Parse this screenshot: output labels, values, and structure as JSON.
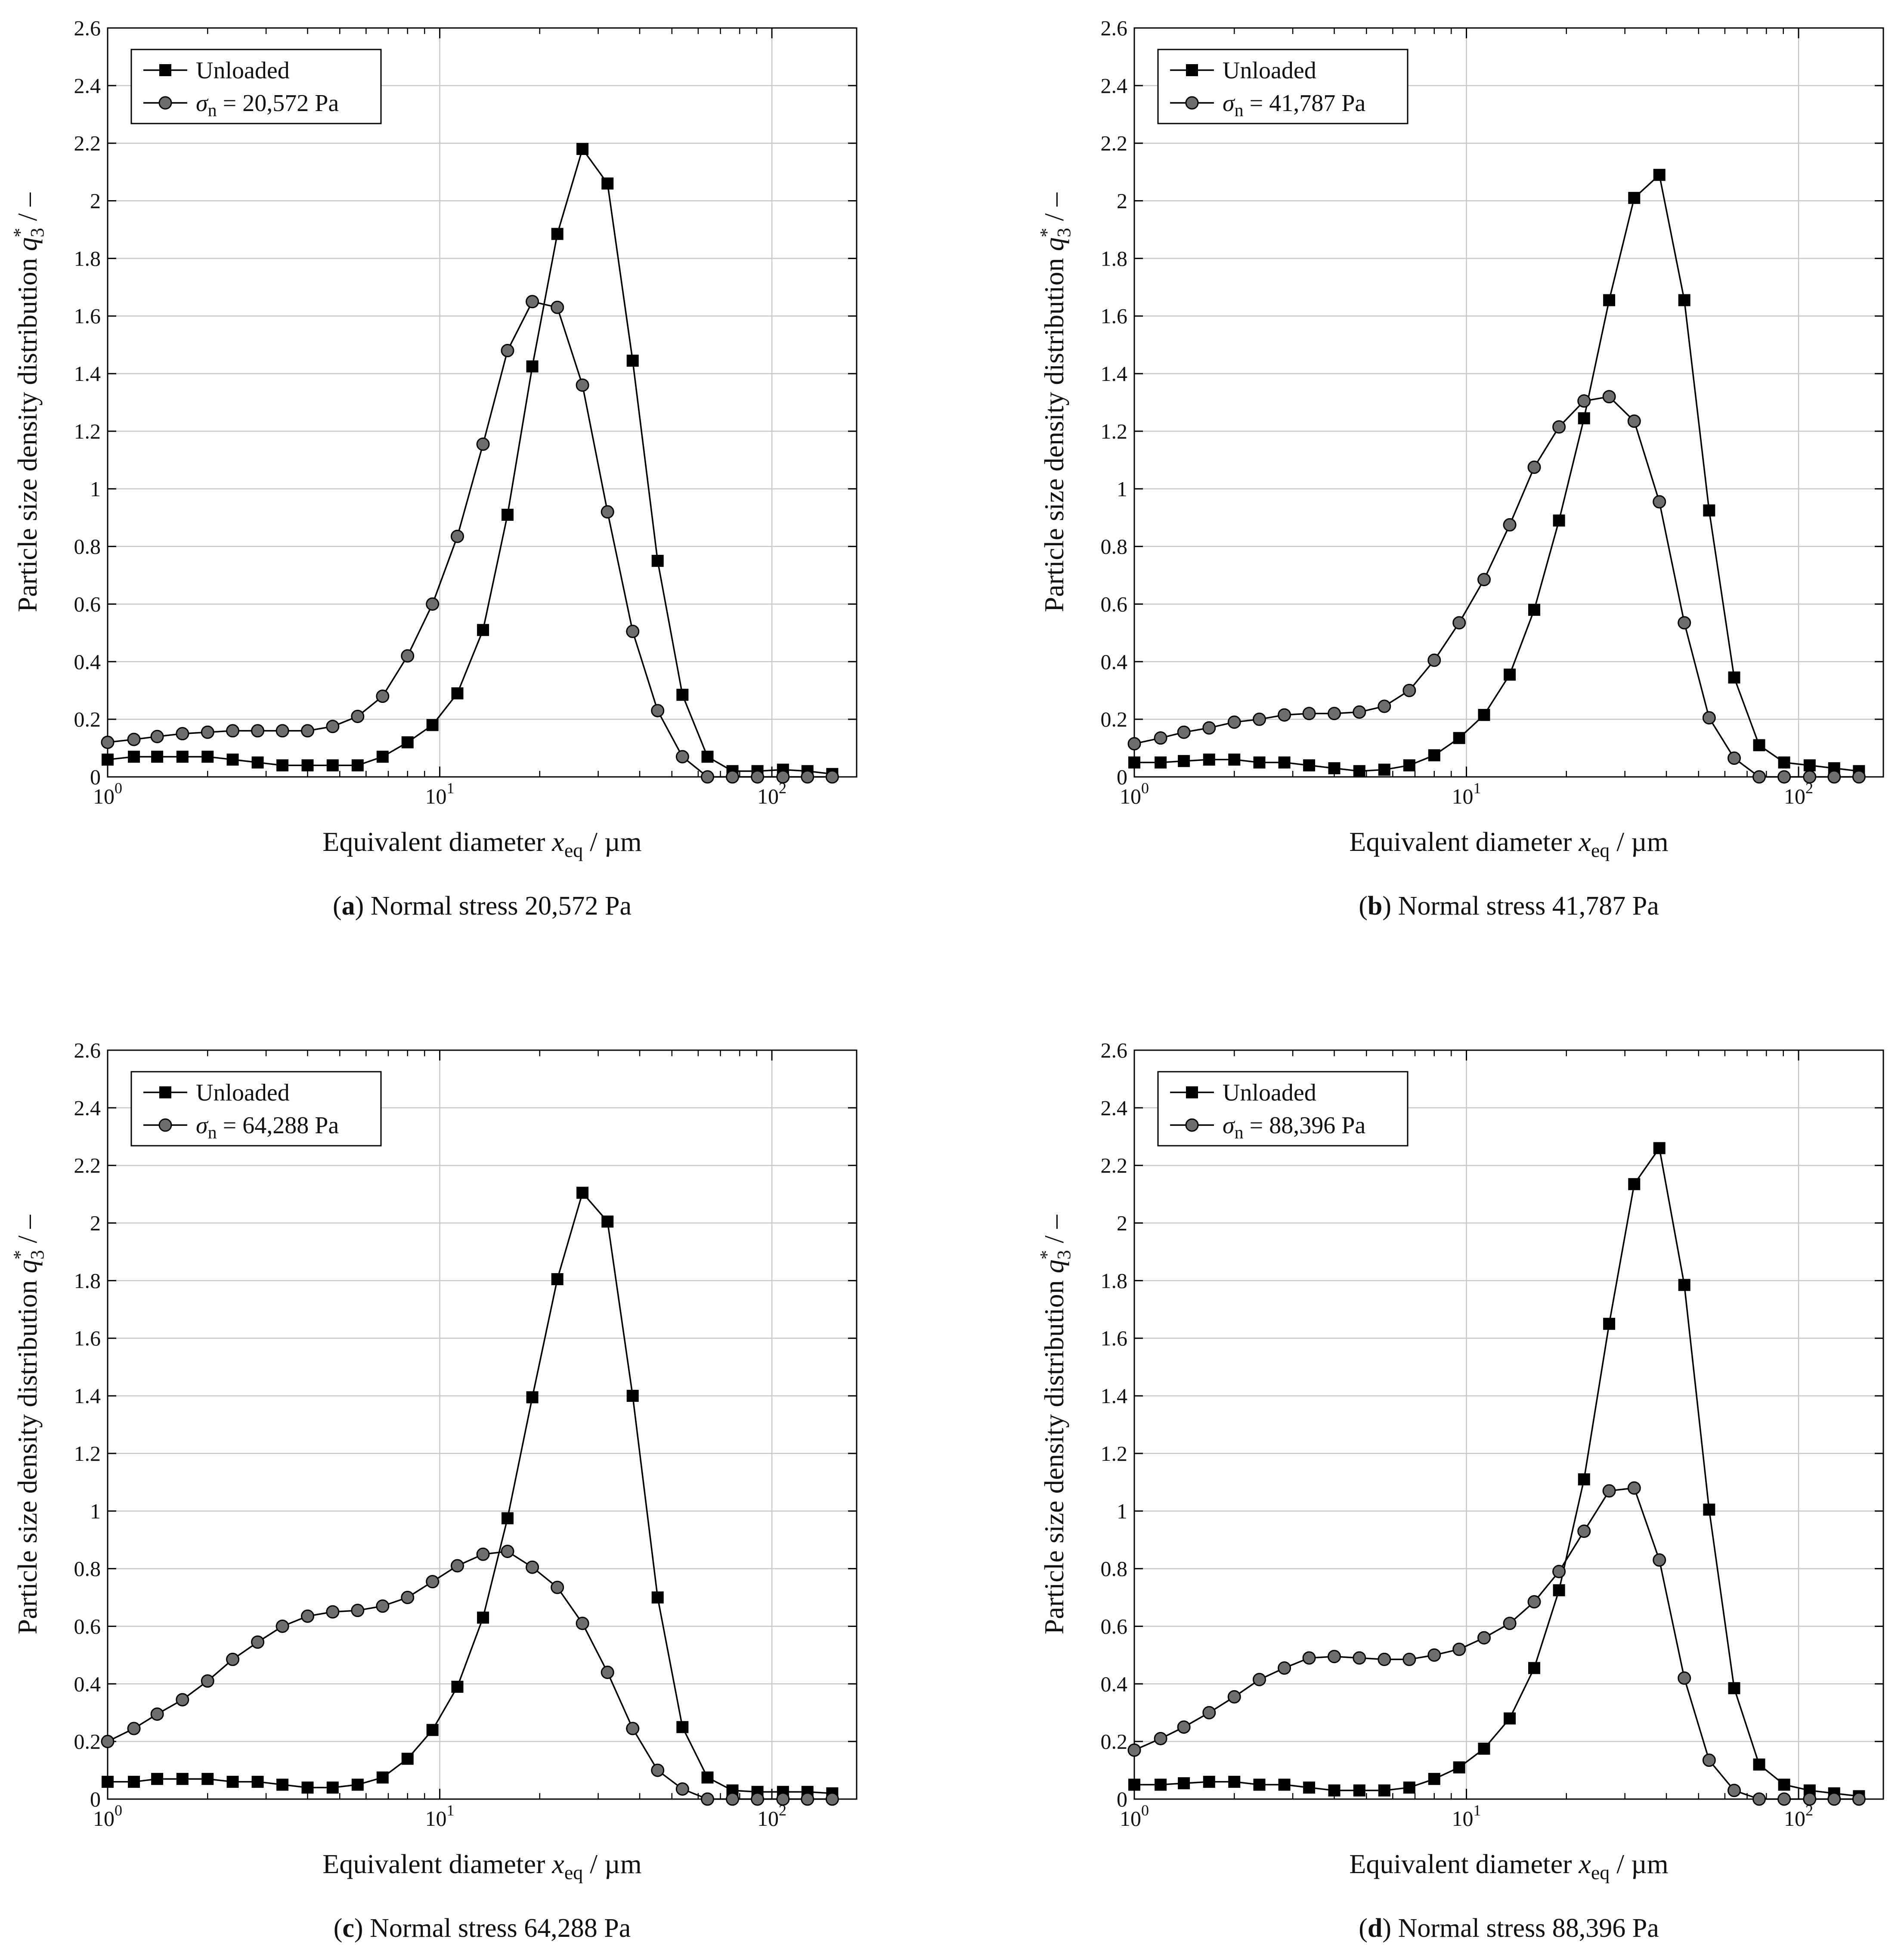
{
  "chart_data": [
    {
      "type": "line",
      "x_scale": "log",
      "xlim": [
        1,
        180
      ],
      "ylim": [
        0,
        2.6
      ],
      "grid": true,
      "legend_position": "top-left",
      "x_ticks": [
        {
          "value": 1,
          "exp": "0"
        },
        {
          "value": 10,
          "exp": "1"
        },
        {
          "value": 100,
          "exp": "2"
        }
      ],
      "y_ticks": [
        0,
        0.2,
        0.4,
        0.6,
        0.8,
        1,
        1.2,
        1.4,
        1.6,
        1.8,
        2,
        2.2,
        2.4,
        2.6
      ],
      "xlabel": "Equivalent diameter",
      "xlabel_var": "x",
      "xlabel_sub": "eq",
      "xlabel_unit": " / µm",
      "ylabel": "Particle size density distribution",
      "ylabel_var": "q",
      "ylabel_sup": "*",
      "ylabel_sub": "3",
      "ylabel_unit": " / –",
      "caption_letter": "(a)",
      "caption_text": "Normal stress 20,572 Pa",
      "series": [
        {
          "name": "Unloaded",
          "marker": "square",
          "color": "#000000",
          "x": [
            1.0,
            1.2,
            1.41,
            1.68,
            2.0,
            2.38,
            2.83,
            3.36,
            4.0,
            4.76,
            5.66,
            6.73,
            8.0,
            9.51,
            11.3,
            13.5,
            16.0,
            19.0,
            22.6,
            26.9,
            32.0,
            38.1,
            45.3,
            53.8,
            64.0,
            76.1,
            90.5,
            108,
            128,
            152
          ],
          "y": [
            0.06,
            0.07,
            0.07,
            0.07,
            0.07,
            0.06,
            0.05,
            0.04,
            0.04,
            0.04,
            0.04,
            0.07,
            0.12,
            0.18,
            0.29,
            0.51,
            0.91,
            1.425,
            1.885,
            2.18,
            2.06,
            1.445,
            0.75,
            0.285,
            0.07,
            0.02,
            0.02,
            0.025,
            0.02,
            0.01
          ]
        },
        {
          "name_prefix": "σ",
          "name_sub": "n",
          "name_value": " = 20,572 Pa",
          "marker": "circle",
          "color": "#6e6e6e",
          "x": [
            1.0,
            1.2,
            1.41,
            1.68,
            2.0,
            2.38,
            2.83,
            3.36,
            4.0,
            4.76,
            5.66,
            6.73,
            8.0,
            9.51,
            11.3,
            13.5,
            16.0,
            19.0,
            22.6,
            26.9,
            32.0,
            38.1,
            45.3,
            53.8,
            64.0,
            76.1,
            90.5,
            108,
            128,
            152
          ],
          "y": [
            0.12,
            0.13,
            0.14,
            0.15,
            0.155,
            0.16,
            0.16,
            0.16,
            0.16,
            0.175,
            0.21,
            0.28,
            0.42,
            0.6,
            0.835,
            1.155,
            1.48,
            1.65,
            1.63,
            1.36,
            0.92,
            0.505,
            0.23,
            0.07,
            0.0,
            0.0,
            0.0,
            0.0,
            0.0,
            0.0
          ]
        }
      ]
    },
    {
      "type": "line",
      "x_scale": "log",
      "xlim": [
        1,
        180
      ],
      "ylim": [
        0,
        2.6
      ],
      "grid": true,
      "legend_position": "top-left",
      "x_ticks": [
        {
          "value": 1,
          "exp": "0"
        },
        {
          "value": 10,
          "exp": "1"
        },
        {
          "value": 100,
          "exp": "2"
        }
      ],
      "y_ticks": [
        0,
        0.2,
        0.4,
        0.6,
        0.8,
        1,
        1.2,
        1.4,
        1.6,
        1.8,
        2,
        2.2,
        2.4,
        2.6
      ],
      "xlabel": "Equivalent diameter",
      "xlabel_var": "x",
      "xlabel_sub": "eq",
      "xlabel_unit": " / µm",
      "ylabel": "Particle size density distribution",
      "ylabel_var": "q",
      "ylabel_sup": "*",
      "ylabel_sub": "3",
      "ylabel_unit": " / –",
      "caption_letter": "(b)",
      "caption_text": "Normal stress 41,787 Pa",
      "series": [
        {
          "name": "Unloaded",
          "marker": "square",
          "color": "#000000",
          "x": [
            1.0,
            1.2,
            1.41,
            1.68,
            2.0,
            2.38,
            2.83,
            3.36,
            4.0,
            4.76,
            5.66,
            6.73,
            8.0,
            9.51,
            11.3,
            13.5,
            16.0,
            19.0,
            22.6,
            26.9,
            32.0,
            38.1,
            45.3,
            53.8,
            64.0,
            76.1,
            90.5,
            108,
            128,
            152
          ],
          "y": [
            0.05,
            0.05,
            0.055,
            0.06,
            0.06,
            0.05,
            0.05,
            0.04,
            0.03,
            0.02,
            0.025,
            0.04,
            0.075,
            0.135,
            0.215,
            0.355,
            0.58,
            0.89,
            1.245,
            1.655,
            2.01,
            2.09,
            1.655,
            0.925,
            0.345,
            0.11,
            0.05,
            0.04,
            0.03,
            0.02
          ]
        },
        {
          "name_prefix": "σ",
          "name_sub": "n",
          "name_value": " = 41,787 Pa",
          "marker": "circle",
          "color": "#6e6e6e",
          "x": [
            1.0,
            1.2,
            1.41,
            1.68,
            2.0,
            2.38,
            2.83,
            3.36,
            4.0,
            4.76,
            5.66,
            6.73,
            8.0,
            9.51,
            11.3,
            13.5,
            16.0,
            19.0,
            22.6,
            26.9,
            32.0,
            38.1,
            45.3,
            53.8,
            64.0,
            76.1,
            90.5,
            108,
            128,
            152
          ],
          "y": [
            0.115,
            0.135,
            0.155,
            0.17,
            0.19,
            0.2,
            0.215,
            0.22,
            0.22,
            0.225,
            0.245,
            0.3,
            0.405,
            0.535,
            0.685,
            0.875,
            1.075,
            1.215,
            1.305,
            1.32,
            1.235,
            0.955,
            0.535,
            0.205,
            0.065,
            0.0,
            0.0,
            0.0,
            0.0,
            0.0
          ]
        }
      ]
    },
    {
      "type": "line",
      "x_scale": "log",
      "xlim": [
        1,
        180
      ],
      "ylim": [
        0,
        2.6
      ],
      "grid": true,
      "legend_position": "top-left",
      "x_ticks": [
        {
          "value": 1,
          "exp": "0"
        },
        {
          "value": 10,
          "exp": "1"
        },
        {
          "value": 100,
          "exp": "2"
        }
      ],
      "y_ticks": [
        0,
        0.2,
        0.4,
        0.6,
        0.8,
        1,
        1.2,
        1.4,
        1.6,
        1.8,
        2,
        2.2,
        2.4,
        2.6
      ],
      "xlabel": "Equivalent diameter",
      "xlabel_var": "x",
      "xlabel_sub": "eq",
      "xlabel_unit": " / µm",
      "ylabel": "Particle size density distribution",
      "ylabel_var": "q",
      "ylabel_sup": "*",
      "ylabel_sub": "3",
      "ylabel_unit": " / –",
      "caption_letter": "(c)",
      "caption_text": "Normal stress 64,288 Pa",
      "series": [
        {
          "name": "Unloaded",
          "marker": "square",
          "color": "#000000",
          "x": [
            1.0,
            1.2,
            1.41,
            1.68,
            2.0,
            2.38,
            2.83,
            3.36,
            4.0,
            4.76,
            5.66,
            6.73,
            8.0,
            9.51,
            11.3,
            13.5,
            16.0,
            19.0,
            22.6,
            26.9,
            32.0,
            38.1,
            45.3,
            53.8,
            64.0,
            76.1,
            90.5,
            108,
            128,
            152
          ],
          "y": [
            0.06,
            0.06,
            0.07,
            0.07,
            0.07,
            0.06,
            0.06,
            0.05,
            0.04,
            0.04,
            0.05,
            0.075,
            0.14,
            0.24,
            0.39,
            0.63,
            0.975,
            1.395,
            1.805,
            2.105,
            2.005,
            1.4,
            0.7,
            0.25,
            0.075,
            0.03,
            0.025,
            0.025,
            0.025,
            0.02
          ]
        },
        {
          "name_prefix": "σ",
          "name_sub": "n",
          "name_value": " = 64,288 Pa",
          "marker": "circle",
          "color": "#6e6e6e",
          "x": [
            1.0,
            1.2,
            1.41,
            1.68,
            2.0,
            2.38,
            2.83,
            3.36,
            4.0,
            4.76,
            5.66,
            6.73,
            8.0,
            9.51,
            11.3,
            13.5,
            16.0,
            19.0,
            22.6,
            26.9,
            32.0,
            38.1,
            45.3,
            53.8,
            64.0,
            76.1,
            90.5,
            108,
            128,
            152
          ],
          "y": [
            0.2,
            0.245,
            0.295,
            0.345,
            0.41,
            0.485,
            0.545,
            0.6,
            0.635,
            0.65,
            0.655,
            0.67,
            0.7,
            0.755,
            0.81,
            0.85,
            0.86,
            0.805,
            0.735,
            0.61,
            0.44,
            0.245,
            0.1,
            0.035,
            0.0,
            0.0,
            0.0,
            0.0,
            0.0,
            0.0
          ]
        }
      ]
    },
    {
      "type": "line",
      "x_scale": "log",
      "xlim": [
        1,
        180
      ],
      "ylim": [
        0,
        2.6
      ],
      "grid": true,
      "legend_position": "top-left",
      "x_ticks": [
        {
          "value": 1,
          "exp": "0"
        },
        {
          "value": 10,
          "exp": "1"
        },
        {
          "value": 100,
          "exp": "2"
        }
      ],
      "y_ticks": [
        0,
        0.2,
        0.4,
        0.6,
        0.8,
        1,
        1.2,
        1.4,
        1.6,
        1.8,
        2,
        2.2,
        2.4,
        2.6
      ],
      "xlabel": "Equivalent diameter",
      "xlabel_var": "x",
      "xlabel_sub": "eq",
      "xlabel_unit": " / µm",
      "ylabel": "Particle size density distribution",
      "ylabel_var": "q",
      "ylabel_sup": "*",
      "ylabel_sub": "3",
      "ylabel_unit": " / –",
      "caption_letter": "(d)",
      "caption_text": "Normal stress 88,396 Pa",
      "series": [
        {
          "name": "Unloaded",
          "marker": "square",
          "color": "#000000",
          "x": [
            1.0,
            1.2,
            1.41,
            1.68,
            2.0,
            2.38,
            2.83,
            3.36,
            4.0,
            4.76,
            5.66,
            6.73,
            8.0,
            9.51,
            11.3,
            13.5,
            16.0,
            19.0,
            22.6,
            26.9,
            32.0,
            38.1,
            45.3,
            53.8,
            64.0,
            76.1,
            90.5,
            108,
            128,
            152
          ],
          "y": [
            0.05,
            0.05,
            0.055,
            0.06,
            0.06,
            0.05,
            0.05,
            0.04,
            0.03,
            0.03,
            0.03,
            0.04,
            0.07,
            0.11,
            0.175,
            0.28,
            0.455,
            0.725,
            1.11,
            1.65,
            2.135,
            2.26,
            1.785,
            1.005,
            0.385,
            0.12,
            0.05,
            0.03,
            0.02,
            0.01
          ]
        },
        {
          "name_prefix": "σ",
          "name_sub": "n",
          "name_value": " = 88,396 Pa",
          "marker": "circle",
          "color": "#6e6e6e",
          "x": [
            1.0,
            1.2,
            1.41,
            1.68,
            2.0,
            2.38,
            2.83,
            3.36,
            4.0,
            4.76,
            5.66,
            6.73,
            8.0,
            9.51,
            11.3,
            13.5,
            16.0,
            19.0,
            22.6,
            26.9,
            32.0,
            38.1,
            45.3,
            53.8,
            64.0,
            76.1,
            90.5,
            108,
            128,
            152
          ],
          "y": [
            0.17,
            0.21,
            0.25,
            0.3,
            0.355,
            0.415,
            0.455,
            0.49,
            0.495,
            0.49,
            0.485,
            0.485,
            0.5,
            0.52,
            0.56,
            0.61,
            0.685,
            0.79,
            0.93,
            1.07,
            1.08,
            0.83,
            0.42,
            0.135,
            0.03,
            0.0,
            0.0,
            0.0,
            0.0,
            0.0
          ]
        }
      ]
    }
  ]
}
